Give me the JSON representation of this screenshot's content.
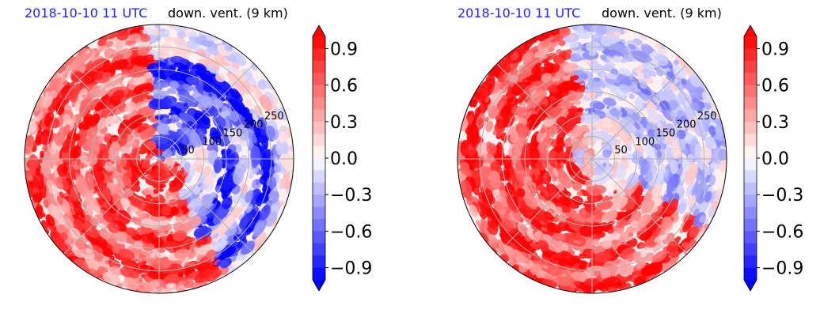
{
  "figure": {
    "panels": [
      {
        "time_label": "2018-10-10 11 UTC",
        "field_label": "down. vent. (9 km)"
      },
      {
        "time_label": "2018-10-10 11 UTC",
        "field_label": "down. vent. (9 km)"
      }
    ]
  },
  "chart_data": [
    {
      "type": "heatmap",
      "projection": "polar",
      "title": "down. vent. (9 km)",
      "time": "2018-10-10 11 UTC",
      "radial_ticks": [
        50,
        100,
        150,
        200,
        250
      ],
      "radial_range": [
        0,
        300
      ],
      "grid": true,
      "colorbar": {
        "ticks": [
          0.9,
          0.6,
          0.3,
          0.0,
          -0.3,
          -0.6,
          -0.9
        ],
        "tick_labels": [
          "0.9",
          "0.6",
          "0.3",
          "0.0",
          "−0.3",
          "−0.6",
          "−0.9"
        ],
        "range": [
          -1.0,
          1.0
        ],
        "extend": "both",
        "colormap": "bwr",
        "levels": 20
      },
      "colors": {
        "positive": "#ff0000",
        "negative": "#0000ff",
        "neutral": "#ffffff"
      }
    },
    {
      "type": "heatmap",
      "projection": "polar",
      "title": "down. vent. (9 km)",
      "time": "2018-10-10 11 UTC",
      "radial_ticks": [
        50,
        100,
        150,
        200,
        250
      ],
      "radial_range": [
        0,
        300
      ],
      "grid": true,
      "colorbar": {
        "ticks": [
          0.9,
          0.6,
          0.3,
          0.0,
          -0.3,
          -0.6,
          -0.9
        ],
        "tick_labels": [
          "0.9",
          "0.6",
          "0.3",
          "0.0",
          "−0.3",
          "−0.6",
          "−0.9"
        ],
        "range": [
          -1.0,
          1.0
        ],
        "extend": "both",
        "colormap": "bwr",
        "levels": 20
      },
      "colors": {
        "positive": "#ff0000",
        "negative": "#0000ff",
        "neutral": "#ffffff"
      }
    }
  ]
}
